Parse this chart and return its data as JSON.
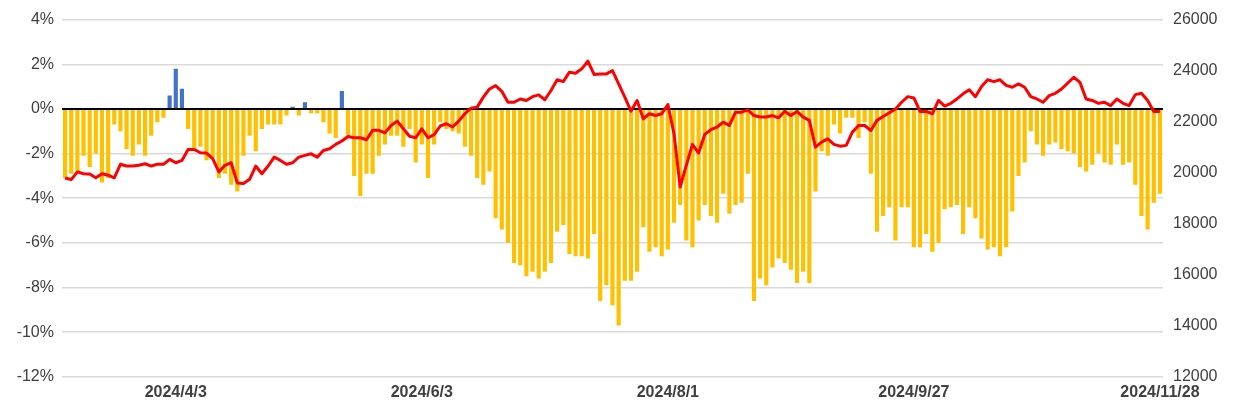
{
  "chart_data": {
    "type": "bar",
    "categories": [
      null,
      null,
      null,
      null,
      null,
      null,
      null,
      null,
      null,
      null,
      null,
      null,
      null,
      null,
      null,
      null,
      null,
      null,
      "2024/4/3",
      null,
      null,
      null,
      null,
      null,
      null,
      null,
      null,
      null,
      null,
      null,
      null,
      null,
      null,
      null,
      null,
      null,
      null,
      null,
      null,
      null,
      null,
      null,
      null,
      null,
      null,
      null,
      null,
      null,
      null,
      null,
      null,
      null,
      null,
      null,
      null,
      null,
      null,
      null,
      "2024/6/3",
      null,
      null,
      null,
      null,
      null,
      null,
      null,
      null,
      null,
      null,
      null,
      null,
      null,
      null,
      null,
      null,
      null,
      null,
      null,
      null,
      null,
      null,
      null,
      null,
      null,
      null,
      null,
      null,
      null,
      null,
      null,
      null,
      null,
      null,
      null,
      null,
      null,
      null,
      null,
      "2024/8/1",
      null,
      null,
      null,
      null,
      null,
      null,
      null,
      null,
      null,
      null,
      null,
      null,
      null,
      null,
      null,
      null,
      null,
      null,
      null,
      null,
      null,
      null,
      null,
      null,
      null,
      null,
      null,
      null,
      null,
      null,
      null,
      null,
      null,
      null,
      null,
      null,
      null,
      null,
      null,
      "2024/9/27",
      null,
      null,
      null,
      null,
      null,
      null,
      null,
      null,
      null,
      null,
      null,
      null,
      null,
      null,
      null,
      null,
      null,
      null,
      null,
      null,
      null,
      null,
      null,
      null,
      null,
      null,
      null,
      null,
      null,
      null,
      null,
      null,
      null,
      null,
      null,
      null,
      null,
      null,
      null,
      "2024/11/28"
    ],
    "series": [
      {
        "axis": "y",
        "values": [
          -3.1,
          -2.9,
          -2.8,
          -2.1,
          -2.6,
          -2.0,
          -3.3,
          -3.1,
          -0.7,
          -1.0,
          -1.8,
          -2.1,
          -1.6,
          -2.1,
          -1.2,
          -0.6,
          -0.4,
          0.6,
          1.8,
          0.9,
          -0.9,
          -1.8,
          -1.7,
          -2.3,
          -2.2,
          -3.1,
          -2.9,
          -3.4,
          -3.7,
          -2.1,
          -1.2,
          -1.9,
          -0.9,
          -0.7,
          -0.7,
          -0.7,
          -0.3,
          0.1,
          -0.3,
          0.3,
          -0.2,
          -0.2,
          -0.6,
          -1.1,
          -1.3,
          0.8,
          -1.2,
          -3.0,
          -3.9,
          -2.9,
          -2.9,
          -2.1,
          -1.6,
          -1.2,
          -1.2,
          -1.7,
          -0.9,
          -2.4,
          -1.6,
          -3.1,
          -1.6,
          -0.6,
          -0.9,
          -1.0,
          -1.1,
          -1.7,
          -2.1,
          -3.1,
          -3.4,
          -2.8,
          -4.9,
          -5.4,
          -6.0,
          -6.9,
          -7.0,
          -7.5,
          -7.3,
          -7.6,
          -7.3,
          -6.9,
          -5.5,
          -5.2,
          -6.5,
          -6.6,
          -6.6,
          -6.7,
          -5.6,
          -8.6,
          -7.9,
          -8.8,
          -9.7,
          -7.7,
          -7.7,
          -7.3,
          -5.3,
          -6.4,
          -6.2,
          -6.6,
          -6.3,
          -5.1,
          -4.3,
          -5.9,
          -6.2,
          -5.0,
          -4.3,
          -4.8,
          -5.1,
          -3.8,
          -4.7,
          -4.3,
          -4.2,
          -2.9,
          -8.6,
          -7.6,
          -7.9,
          -7.1,
          -6.7,
          -6.9,
          -7.2,
          -7.8,
          -7.3,
          -7.8,
          -3.7,
          -1.9,
          -2.1,
          -0.7,
          -1.1,
          -0.4,
          -0.4,
          -1.3,
          -0.6,
          -2.9,
          -5.5,
          -4.8,
          -4.4,
          -5.9,
          -4.4,
          -4.4,
          -6.2,
          -6.2,
          -5.6,
          -6.4,
          -6.0,
          -4.5,
          -4.4,
          -4.3,
          -5.6,
          -4.4,
          -4.9,
          -5.8,
          -6.3,
          -6.2,
          -6.6,
          -6.2,
          -4.6,
          -3.0,
          -2.4,
          -1.0,
          -1.6,
          -2.1,
          -1.6,
          -1.5,
          -1.8,
          -1.9,
          -2.0,
          -2.6,
          -2.8,
          -2.5,
          -2.0,
          -2.4,
          -2.5,
          -1.6,
          -2.5,
          -2.4,
          -3.4,
          -4.8,
          -5.4,
          -4.2,
          -3.8
        ],
        "colors": [
          "#ffc000",
          "#ffc000",
          "#ffc000",
          "#ffc000",
          "#ffc000",
          "#ffc000",
          "#ffc000",
          "#ffc000",
          "#ffc000",
          "#ffc000",
          "#ffc000",
          "#ffc000",
          "#ffc000",
          "#ffc000",
          "#ffc000",
          "#ffc000",
          "#ffc000",
          "#4472c4",
          "#4472c4",
          "#4472c4",
          "#ffc000",
          "#ffc000",
          "#ffc000",
          "#ffc000",
          "#ffc000",
          "#ffc000",
          "#ffc000",
          "#ffc000",
          "#ffc000",
          "#ffc000",
          "#ffc000",
          "#ffc000",
          "#ffc000",
          "#ffc000",
          "#ffc000",
          "#ffc000",
          "#ffc000",
          "#4472c4",
          "#ffc000",
          "#4472c4",
          "#ffc000",
          "#ffc000",
          "#ffc000",
          "#ffc000",
          "#ffc000",
          "#4472c4",
          "#ffc000",
          "#ffc000",
          "#ffc000",
          "#ffc000",
          "#ffc000",
          "#ffc000",
          "#ffc000",
          "#ffc000",
          "#ffc000",
          "#ffc000",
          "#ffc000",
          "#ffc000",
          "#ffc000",
          "#ffc000",
          "#ffc000",
          "#ffc000",
          "#ffc000",
          "#ffc000",
          "#ffc000",
          "#ffc000",
          "#ffc000",
          "#ffc000",
          "#ffc000",
          "#ffc000",
          "#ffc000",
          "#ffc000",
          "#ffc000",
          "#ffc000",
          "#ffc000",
          "#ffc000",
          "#ffc000",
          "#ffc000",
          "#ffc000",
          "#ffc000",
          "#ffc000",
          "#ffc000",
          "#ffc000",
          "#ffc000",
          "#ffc000",
          "#ffc000",
          "#ffc000",
          "#ffc000",
          "#ffc000",
          "#ffc000",
          "#ffc000",
          "#ffc000",
          "#ffc000",
          "#ffc000",
          "#ffc000",
          "#ffc000",
          "#ffc000",
          "#ffc000",
          "#ffc000",
          "#ffc000",
          "#ffc000",
          "#ffc000",
          "#ffc000",
          "#ffc000",
          "#ffc000",
          "#ffc000",
          "#ffc000",
          "#ffc000",
          "#ffc000",
          "#ffc000",
          "#ffc000",
          "#ffc000",
          "#ffc000",
          "#ffc000",
          "#ffc000",
          "#ffc000",
          "#ffc000",
          "#ffc000",
          "#ffc000",
          "#ffc000",
          "#ffc000",
          "#ffc000",
          "#ffc000",
          "#ffc000",
          "#ffc000",
          "#ffc000",
          "#ffc000",
          "#ffc000",
          "#ffc000",
          "#ffc000",
          "#ffc000",
          "#ffc000",
          "#ffc000",
          "#ffc000",
          "#ffc000",
          "#ffc000",
          "#ffc000",
          "#ffc000",
          "#ffc000",
          "#ffc000",
          "#ffc000",
          "#ffc000",
          "#ffc000",
          "#ffc000",
          "#ffc000",
          "#ffc000",
          "#ffc000",
          "#ffc000",
          "#ffc000",
          "#ffc000",
          "#ffc000",
          "#ffc000",
          "#ffc000",
          "#ffc000",
          "#ffc000",
          "#ffc000",
          "#ffc000",
          "#ffc000",
          "#ffc000",
          "#ffc000",
          "#ffc000",
          "#ffc000",
          "#ffc000",
          "#ffc000",
          "#ffc000",
          "#ffc000",
          "#ffc000",
          "#ffc000",
          "#ffc000",
          "#ffc000",
          "#ffc000",
          "#ffc000",
          "#ffc000",
          "#ffc000",
          "#ffc000",
          "#ffc000",
          "#ffc000",
          "#ffc000",
          "#ffc000"
        ]
      },
      {
        "type": "line",
        "axis": "y2",
        "color": "#ff0000",
        "values": [
          19790,
          19730,
          20030,
          19960,
          19950,
          19800,
          19960,
          19900,
          19800,
          20330,
          20260,
          20260,
          20290,
          20350,
          20260,
          20330,
          20330,
          20520,
          20390,
          20480,
          20910,
          20910,
          20780,
          20770,
          20550,
          20030,
          20290,
          20390,
          19600,
          19580,
          19740,
          20260,
          19960,
          20260,
          20610,
          20480,
          20330,
          20390,
          20610,
          20680,
          20740,
          20610,
          20870,
          20940,
          21110,
          21240,
          21420,
          21370,
          21370,
          21290,
          21660,
          21660,
          21560,
          21850,
          22020,
          21720,
          21430,
          21370,
          21720,
          21370,
          21490,
          21830,
          21920,
          21790,
          22020,
          22310,
          22530,
          22570,
          22960,
          23280,
          23410,
          23190,
          22760,
          22760,
          22890,
          22830,
          22980,
          23050,
          22860,
          23220,
          23640,
          23570,
          23940,
          23900,
          24070,
          24370,
          23850,
          23870,
          23870,
          24000,
          23480,
          22960,
          22410,
          22830,
          22110,
          22310,
          22240,
          22310,
          22670,
          21530,
          19440,
          20290,
          21110,
          20770,
          21500,
          21690,
          21790,
          21980,
          21850,
          22370,
          22370,
          22460,
          22240,
          22180,
          22180,
          22240,
          22150,
          22410,
          22240,
          22400,
          22180,
          22050,
          21000,
          21200,
          21330,
          21110,
          21040,
          21070,
          21590,
          21850,
          21850,
          21650,
          22050,
          22200,
          22350,
          22500,
          22760,
          22980,
          22930,
          22400,
          22400,
          22310,
          22830,
          22610,
          22720,
          22890,
          23090,
          23250,
          22980,
          23380,
          23640,
          23570,
          23640,
          23420,
          23350,
          23480,
          23350,
          22980,
          22890,
          22760,
          23020,
          23110,
          23280,
          23510,
          23740,
          23540,
          22890,
          22830,
          22720,
          22760,
          22630,
          22890,
          22720,
          22630,
          23060,
          23110,
          22830,
          22400,
          22400
        ]
      }
    ],
    "ylim": [
      -12,
      4
    ],
    "yticks": [
      {
        "value": -12,
        "label": "-12%"
      },
      {
        "value": -10,
        "label": "-10%"
      },
      {
        "value": -8,
        "label": "-8%"
      },
      {
        "value": -6,
        "label": "-6%"
      },
      {
        "value": -4,
        "label": "-4%"
      },
      {
        "value": -2,
        "label": "-2%"
      },
      {
        "value": 0,
        "label": "0%"
      },
      {
        "value": 2,
        "label": "2%"
      },
      {
        "value": 4,
        "label": "4%"
      }
    ],
    "y2lim": [
      12000,
      26000
    ],
    "y2ticks": [
      12000,
      14000,
      16000,
      18000,
      20000,
      22000,
      24000,
      26000
    ],
    "grid": "y",
    "marker": "none"
  }
}
